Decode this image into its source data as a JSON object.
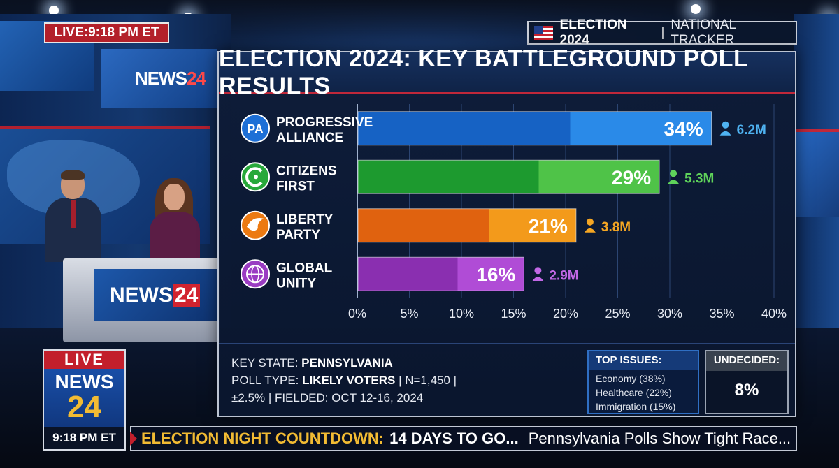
{
  "top_bar": {
    "live_label": "LIVE:",
    "time": "9:18 PM ET",
    "tracker_title": "ELECTION 2024",
    "tracker_subtitle": "NATIONAL TRACKER"
  },
  "studio": {
    "brand_name": "NEWS",
    "brand_number": "24"
  },
  "panel": {
    "title": "ELECTION 2024: KEY BATTLEGROUND POLL RESULTS"
  },
  "chart_data": {
    "type": "bar",
    "orientation": "horizontal",
    "title": "ELECTION 2024: KEY BATTLEGROUND POLL RESULTS",
    "xlabel": "",
    "ylabel": "",
    "xlim": [
      0,
      40
    ],
    "x_ticks": [
      "0%",
      "5%",
      "10%",
      "15%",
      "20%",
      "25%",
      "30%",
      "35%",
      "40%"
    ],
    "grid": true,
    "categories": [
      {
        "name_line1": "PROGRESSIVE",
        "name_line2": "ALLIANCE",
        "logo_text": "PA",
        "logo_icon": "pa-logo-icon",
        "value": 34,
        "value_label": "34%",
        "voters": "6.2M",
        "color_dark": "#1662c4",
        "color_light": "#2a8ae8",
        "voters_color": "#4fb3f2",
        "logo_color": "#1d6fd6"
      },
      {
        "name_line1": "CITIZENS",
        "name_line2": "FIRST",
        "logo_text": "",
        "logo_icon": "citizens-first-logo-icon",
        "value": 29,
        "value_label": "29%",
        "voters": "5.3M",
        "color_dark": "#1d9a2f",
        "color_light": "#4fc348",
        "voters_color": "#5fd35a",
        "logo_color": "#27a83a"
      },
      {
        "name_line1": "LIBERTY",
        "name_line2": "PARTY",
        "logo_text": "",
        "logo_icon": "eagle-logo-icon",
        "value": 21,
        "value_label": "21%",
        "voters": "3.8M",
        "color_dark": "#e0620f",
        "color_light": "#f39a1b",
        "voters_color": "#f5a623",
        "logo_color": "#ec7a12"
      },
      {
        "name_line1": "GLOBAL",
        "name_line2": "UNITY",
        "logo_text": "",
        "logo_icon": "globe-logo-icon",
        "value": 16,
        "value_label": "16%",
        "voters": "2.9M",
        "color_dark": "#8a2fb0",
        "color_light": "#b04cd6",
        "voters_color": "#c268e6",
        "logo_color": "#9a3cc2"
      }
    ]
  },
  "key_info": {
    "state_label": "KEY STATE:",
    "state": "PENNSYLVANIA",
    "poll_type_label": "POLL TYPE:",
    "poll_type": "LIKELY VOTERS",
    "sample": "| N=1,450 |",
    "margin": "±2.5%",
    "fielded": "| FIELDED: OCT 12-16, 2024"
  },
  "top_issues": {
    "title": "TOP ISSUES:",
    "items": [
      "Economy (38%)",
      "Healthcare (22%)",
      "Immigration (15%)"
    ]
  },
  "undecided": {
    "title": "UNDECIDED:",
    "value": "8%"
  },
  "live_badge": {
    "live": "LIVE",
    "news": "NEWS",
    "number": "24",
    "time": "9:18 PM ET"
  },
  "ticker": {
    "label": "ELECTION NIGHT COUNTDOWN:",
    "countdown": "14 DAYS TO GO...",
    "headline": "Pennsylvania Polls Show Tight Race..."
  }
}
